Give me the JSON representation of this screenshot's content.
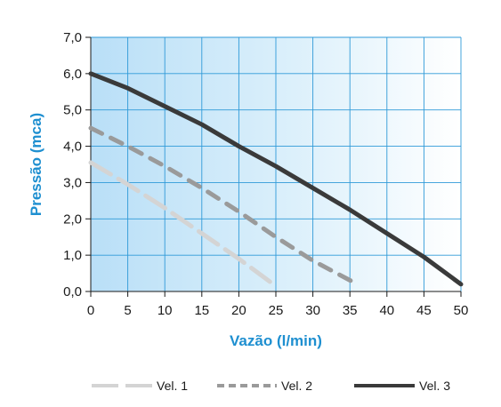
{
  "chart_data": {
    "type": "line",
    "xlabel": "Vazão (l/min)",
    "ylabel": "Pressão (mca)",
    "xlim": [
      0,
      50
    ],
    "ylim": [
      0,
      7
    ],
    "x_ticks": [
      0,
      5,
      10,
      15,
      20,
      25,
      30,
      35,
      40,
      45,
      50
    ],
    "y_ticks": [
      0,
      1,
      2,
      3,
      4,
      5,
      6,
      7
    ],
    "x_tick_labels": [
      "0",
      "5",
      "10",
      "15",
      "20",
      "25",
      "30",
      "35",
      "40",
      "45",
      "50"
    ],
    "y_tick_labels": [
      "0,0",
      "1,0",
      "2,0",
      "3,0",
      "4,0",
      "5,0",
      "6,0",
      "7,0"
    ],
    "grid": true,
    "legend_position": "bottom",
    "series": [
      {
        "name": "Vel. 1",
        "color": "#d4d4d4",
        "style": "long-dash",
        "x": [
          0,
          5,
          10,
          15,
          20,
          25
        ],
        "y": [
          3.55,
          2.95,
          2.3,
          1.6,
          0.9,
          0.15
        ]
      },
      {
        "name": "Vel. 2",
        "color": "#9a9a9a",
        "style": "dashed",
        "x": [
          0,
          5,
          10,
          15,
          20,
          25,
          30,
          36
        ],
        "y": [
          4.5,
          4.0,
          3.45,
          2.85,
          2.2,
          1.5,
          0.85,
          0.2
        ]
      },
      {
        "name": "Vel. 3",
        "color": "#3a3a3a",
        "style": "solid",
        "x": [
          0,
          5,
          10,
          15,
          20,
          25,
          30,
          35,
          40,
          45,
          50
        ],
        "y": [
          6.0,
          5.6,
          5.1,
          4.6,
          4.0,
          3.45,
          2.85,
          2.25,
          1.6,
          0.95,
          0.2
        ]
      }
    ]
  }
}
